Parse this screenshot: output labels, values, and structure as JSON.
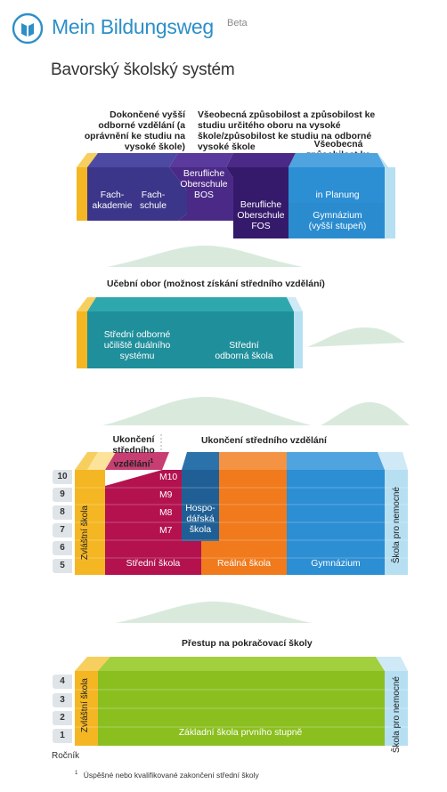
{
  "header": {
    "app_title": "Mein Bildungsweg",
    "beta": "Beta",
    "logo_icon": "book-circle-icon",
    "page_title": "Bavorský školský systém"
  },
  "colors": {
    "brand_blue": "#2d8fc8",
    "navy": "#3b3689",
    "purple": "#4b2a87",
    "blue": "#2c8ed3",
    "light_blue": "#b6dff2",
    "yellow": "#f4b623",
    "teal": "#1f8f9b",
    "crimson": "#b3124f",
    "dark_blue": "#1f5f95",
    "orange": "#f07a1c",
    "green": "#8bbf1f"
  },
  "tertiary": {
    "label_left": "Dokončené vyšší odborné vzdělání (a oprávnění ke studiu na vysoké škole)",
    "label_center": "Všeobecná způsobilost a způsobilost ke studiu určitého oboru na vysoké škole/způsobilost ke studiu na odborné vysoké škole",
    "label_right": "Všeobecná způsobilost ke studiu na vysoké škole",
    "fachakademie": "Fach-\nakademie",
    "fachschule": "Fach-\nschule",
    "bos": "Berufliche\nOberschule\nBOS",
    "fos": "Berufliche\nOberschule\nFOS",
    "in_planung": "in Planung",
    "gymnazium_upper": "Gymnázium\n(vyšší stupeň)"
  },
  "vocational": {
    "label": "Učební obor (možnost získání středního vzdělání)",
    "dual": "Střední odborné\nučiliště duálního\nsystému",
    "school": "Střední\nodborná škola"
  },
  "secondary": {
    "label_left": "Ukončení středního vzdělání",
    "footnote_mark": "1",
    "label_right": "Ukončení středního vzdělání",
    "grades": [
      "10",
      "9",
      "8",
      "7",
      "6",
      "5"
    ],
    "m_levels": [
      "M10",
      "M9",
      "M8",
      "M7"
    ],
    "special_school": "Zvláštní škola",
    "hospodarska": "Hospo-\ndářská\nškola",
    "stredni": "Střední škola",
    "realna": "Reálná škola",
    "gymnazium": "Gymnázium",
    "hospital_school": "Škola pro nemocné"
  },
  "primary": {
    "label": "Přestup na pokračovací školy",
    "grades": [
      "4",
      "3",
      "2",
      "1"
    ],
    "special_school": "Zvláštní škola",
    "basic": "Základní škola prvního stupně",
    "hospital_school": "Škola pro nemocné",
    "rocnik": "Ročník"
  },
  "footnote": {
    "mark": "1",
    "text": "Úspěšné nebo kvalifikované zakončení střední školy"
  }
}
